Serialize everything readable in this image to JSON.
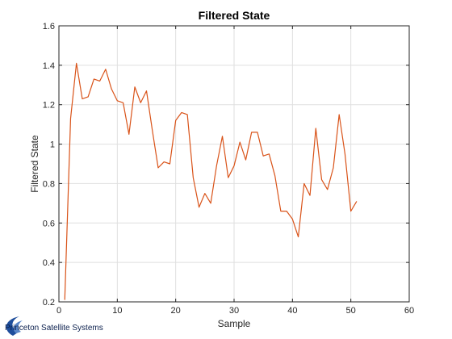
{
  "colors": {
    "line": "#d95319",
    "axis": "#262626",
    "grid": "#dfdfdf",
    "brand": "#0b1f4d",
    "brand_swoosh": "#1f4e9c"
  },
  "chart_data": {
    "type": "line",
    "title": "Filtered State",
    "xlabel": "Sample",
    "ylabel": "Filtered State",
    "xlim": [
      0,
      60
    ],
    "ylim": [
      0.2,
      1.6
    ],
    "xticks": [
      0,
      10,
      20,
      30,
      40,
      50,
      60
    ],
    "yticks": [
      0.2,
      0.4,
      0.6,
      0.8,
      1,
      1.2,
      1.4,
      1.6
    ],
    "xtick_labels": [
      "0",
      "10",
      "20",
      "30",
      "40",
      "50",
      "60"
    ],
    "ytick_labels": [
      "0.2",
      "0.4",
      "0.6",
      "0.8",
      "1",
      "1.2",
      "1.4",
      "1.6"
    ],
    "grid": true,
    "series": [
      {
        "x": [
          1,
          2,
          3,
          4,
          5,
          6,
          7,
          8,
          9,
          10,
          11,
          12,
          13,
          14,
          15,
          16,
          17,
          18,
          19,
          20,
          21,
          22,
          23,
          24,
          25,
          26,
          27,
          28,
          29,
          30,
          31,
          32,
          33,
          34,
          35,
          36,
          37,
          38,
          39,
          40,
          41,
          42,
          43,
          44,
          45,
          46,
          47,
          48,
          49,
          50,
          51
        ],
        "values": [
          0.21,
          1.13,
          1.41,
          1.23,
          1.24,
          1.33,
          1.32,
          1.38,
          1.28,
          1.22,
          1.21,
          1.05,
          1.29,
          1.21,
          1.27,
          1.07,
          0.88,
          0.91,
          0.9,
          1.12,
          1.16,
          1.15,
          0.83,
          0.68,
          0.75,
          0.7,
          0.89,
          1.04,
          0.83,
          0.89,
          1.01,
          0.92,
          1.06,
          1.06,
          0.94,
          0.95,
          0.84,
          0.66,
          0.66,
          0.62,
          0.53,
          0.8,
          0.74,
          1.08,
          0.82,
          0.77,
          0.88,
          1.15,
          0.95,
          0.66,
          0.71
        ]
      }
    ]
  },
  "brand": {
    "text": "Princeton Satellite Systems"
  }
}
